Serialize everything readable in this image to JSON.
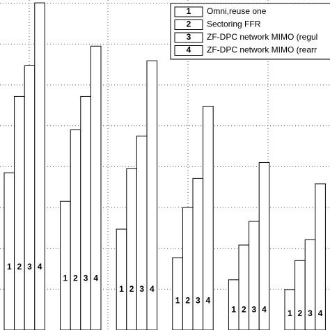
{
  "chart_data": {
    "type": "bar",
    "categories": [
      null,
      null,
      null,
      null,
      null,
      null
    ],
    "series": [
      {
        "name": "Omni,reuse one",
        "key": "1",
        "color": "#ffffff",
        "values": [
          3.85,
          3.15,
          2.47,
          1.77,
          1.23,
          0.99
        ]
      },
      {
        "name": "Sectoring FFR",
        "key": "2",
        "color": "#ffffff",
        "values": [
          5.72,
          4.9,
          3.95,
          3.0,
          2.08,
          1.7
        ]
      },
      {
        "name": "ZF-DPC network MIMO (regul",
        "key": "3",
        "color": "#ffffff",
        "values": [
          6.47,
          5.72,
          4.75,
          3.71,
          2.66,
          2.21
        ]
      },
      {
        "name": "ZF-DPC network MIMO (rearr",
        "key": "4",
        "color": "#ffffff",
        "values": [
          8.01,
          6.95,
          6.59,
          5.48,
          4.1,
          3.58
        ]
      }
    ],
    "ylim": [
      0,
      8.08
    ],
    "yticks": [
      1,
      2,
      3,
      4,
      5,
      6,
      7,
      8
    ],
    "grid": true,
    "legend": "upper right"
  }
}
